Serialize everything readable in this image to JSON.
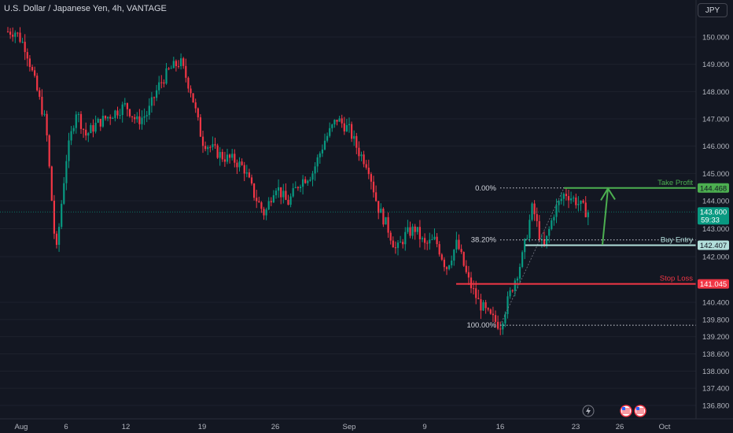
{
  "header": {
    "title": "U.S. Dollar / Japanese Yen, 4h, VANTAGE",
    "currency_button": "JPY"
  },
  "chart_data": {
    "type": "candlestick",
    "ylim": [
      136.5,
      150.5
    ],
    "y_ticks": [
      "150.000",
      "149.000",
      "148.000",
      "147.000",
      "146.000",
      "145.000",
      "144.000",
      "143.000",
      "142.000",
      "140.400",
      "139.800",
      "139.200",
      "138.600",
      "138.000",
      "137.400",
      "136.800"
    ],
    "x_ticks": [
      "Aug",
      "6",
      "12",
      "19",
      "26",
      "Sep",
      "9",
      "16",
      "23",
      "26",
      "Oct"
    ],
    "price_path": [
      [
        "Aug 1",
        150.2
      ],
      [
        "Aug 2",
        149.6
      ],
      [
        "Aug 4",
        146.8
      ],
      [
        "Aug 5",
        142.0
      ],
      [
        "Aug 6",
        145.5
      ],
      [
        "Aug 7",
        147.3
      ],
      [
        "Aug 8",
        146.4
      ],
      [
        "Aug 9",
        146.8
      ],
      [
        "Aug 12",
        147.5
      ],
      [
        "Aug 13",
        146.9
      ],
      [
        "Aug 14",
        147.2
      ],
      [
        "Aug 15",
        148.2
      ],
      [
        "Aug 16",
        148.8
      ],
      [
        "Aug 17",
        149.1
      ],
      [
        "Aug 18",
        148.0
      ],
      [
        "Aug 19",
        146.2
      ],
      [
        "Aug 20",
        145.9
      ],
      [
        "Aug 21",
        145.6
      ],
      [
        "Aug 22",
        145.5
      ],
      [
        "Aug 23",
        145.2
      ],
      [
        "Aug 24",
        144.2
      ],
      [
        "Aug 25",
        143.5
      ],
      [
        "Aug 26",
        144.6
      ],
      [
        "Aug 27",
        143.9
      ],
      [
        "Aug 28",
        144.7
      ],
      [
        "Aug 29",
        145.0
      ],
      [
        "Aug 30",
        146.2
      ],
      [
        "Aug 31",
        147.0
      ],
      [
        "Sep 1",
        146.6
      ],
      [
        "Sep 2",
        145.8
      ],
      [
        "Sep 3",
        145.3
      ],
      [
        "Sep 4",
        143.8
      ],
      [
        "Sep 5",
        143.1
      ],
      [
        "Sep 6",
        142.2
      ],
      [
        "Sep 7",
        142.8
      ],
      [
        "Sep 8",
        143.0
      ],
      [
        "Sep 9",
        142.4
      ],
      [
        "Sep 10",
        142.6
      ],
      [
        "Sep 11",
        141.6
      ],
      [
        "Sep 12",
        142.5
      ],
      [
        "Sep 13",
        141.2
      ],
      [
        "Sep 14",
        140.4
      ],
      [
        "Sep 15",
        139.9
      ],
      [
        "Sep 16",
        139.6
      ],
      [
        "Sep 17",
        140.8
      ],
      [
        "Sep 18",
        141.9
      ],
      [
        "Sep 19",
        143.8
      ],
      [
        "Sep 20",
        142.2
      ],
      [
        "Sep 21",
        143.6
      ],
      [
        "Sep 22",
        144.3
      ],
      [
        "Sep 23",
        144.0
      ],
      [
        "Sep 24",
        143.6
      ]
    ],
    "fibonacci": [
      {
        "level": "0.00%",
        "price": 144.468
      },
      {
        "level": "38.20%",
        "price": 142.6
      },
      {
        "level": "100.00%",
        "price": 139.6
      }
    ],
    "lines": [
      {
        "name": "Take Profit",
        "price": 144.468,
        "color": "#4caf50",
        "label": "144.468"
      },
      {
        "name": "Buy Entry",
        "price": 142.407,
        "color": "#b2dfdb",
        "label": "142.407"
      },
      {
        "name": "Stop Loss",
        "price": 141.045,
        "color": "#f23645",
        "label": "141.045"
      }
    ],
    "current_price": {
      "price": 143.6,
      "label": "143.600",
      "countdown": "59:33",
      "color": "#089981"
    },
    "colors": {
      "up": "#089981",
      "down": "#f23645",
      "arrow": "#4caf50"
    }
  }
}
